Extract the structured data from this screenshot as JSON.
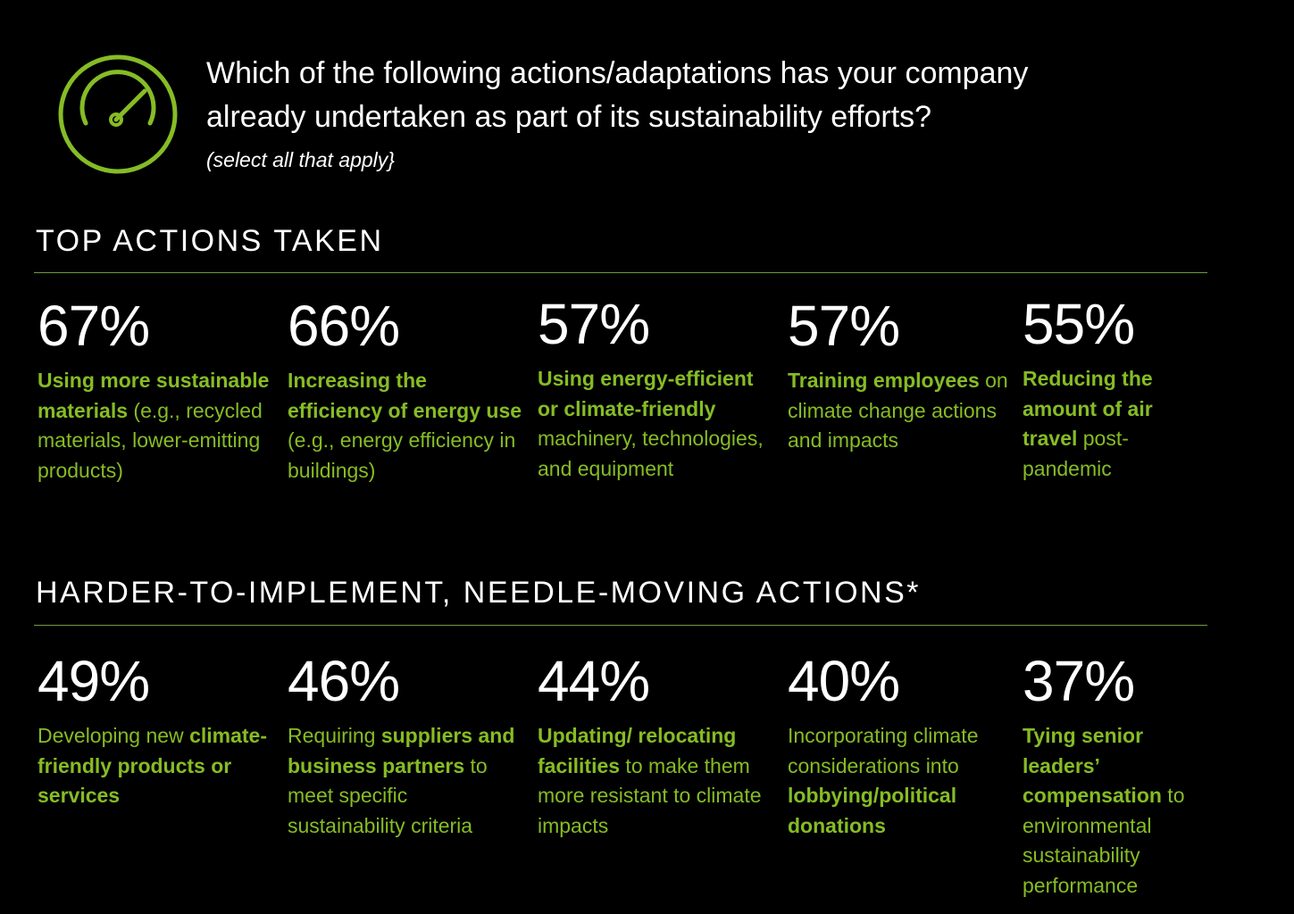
{
  "header": {
    "question_line1": "Which of the following actions/adaptations has your company",
    "question_line2": "already undertaken as part of its sustainability efforts?",
    "note": "(select all that apply}",
    "icon": "speedometer-icon",
    "accent_color": "#86bc25"
  },
  "sections": [
    {
      "title": "TOP ACTIONS TAKEN",
      "stats": [
        {
          "percent": "67%",
          "parts": [
            {
              "text": "Using more sustainable materials",
              "bold": true
            },
            {
              "text": " (e.g., recycled materials, lower-emitting products)",
              "bold": false
            }
          ]
        },
        {
          "percent": "66%",
          "parts": [
            {
              "text": "Increasing the efficiency of energy use",
              "bold": true
            },
            {
              "text": " (e.g., energy efficiency in buildings)",
              "bold": false
            }
          ]
        },
        {
          "percent": "57%",
          "parts": [
            {
              "text": "Using energy-efficient or climate-friendly",
              "bold": true
            },
            {
              "text": " machinery, technologies, and equipment",
              "bold": false
            }
          ]
        },
        {
          "percent": "57%",
          "parts": [
            {
              "text": "Training employees",
              "bold": true
            },
            {
              "text": " on climate change actions and impacts",
              "bold": false
            }
          ]
        },
        {
          "percent": "55%",
          "parts": [
            {
              "text": "Reducing the amount of air travel",
              "bold": true
            },
            {
              "text": " post-pandemic",
              "bold": false
            }
          ]
        }
      ]
    },
    {
      "title": "HARDER-TO-IMPLEMENT, NEEDLE-MOVING ACTIONS*",
      "stats": [
        {
          "percent": "49%",
          "parts": [
            {
              "text": "Developing new ",
              "bold": false
            },
            {
              "text": "climate-friendly products or services",
              "bold": true
            }
          ]
        },
        {
          "percent": "46%",
          "parts": [
            {
              "text": "Requiring ",
              "bold": false
            },
            {
              "text": "suppliers and business partners",
              "bold": true
            },
            {
              "text": " to meet specific sustainability criteria",
              "bold": false
            }
          ]
        },
        {
          "percent": "44%",
          "parts": [
            {
              "text": "Updating/ relocating facilities",
              "bold": true
            },
            {
              "text": " to make them more resistant to climate impacts",
              "bold": false
            }
          ]
        },
        {
          "percent": "40%",
          "parts": [
            {
              "text": "Incorporating climate considerations into ",
              "bold": false
            },
            {
              "text": "lobbying/political donations",
              "bold": true
            }
          ]
        },
        {
          "percent": "37%",
          "parts": [
            {
              "text": "Tying senior leaders’ compensation",
              "bold": true
            },
            {
              "text": " to environmental sustainability performance",
              "bold": false
            }
          ]
        }
      ]
    }
  ]
}
